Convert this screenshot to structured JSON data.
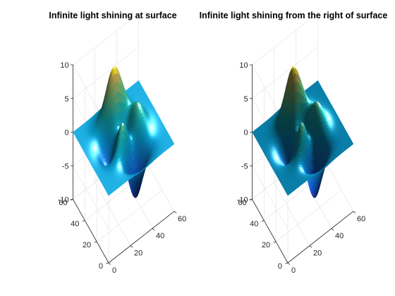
{
  "chart_data": [
    {
      "type": "surface",
      "title": "Infinite light shining at surface",
      "xlabel": "",
      "ylabel": "",
      "zlabel": "",
      "xlim": [
        0,
        60
      ],
      "ylim": [
        0,
        60
      ],
      "zlim": [
        -10,
        10
      ],
      "x_ticks": [
        "0",
        "20",
        "40",
        "60"
      ],
      "y_ticks": [
        "0",
        "20",
        "40",
        "60"
      ],
      "z_ticks": [
        "-10",
        "-5",
        "0",
        "5",
        "10"
      ],
      "grid": "on",
      "colormap": "parula",
      "light": "infinite, at surface",
      "function": "peaks",
      "grid_size": 49,
      "z_range": [
        -6.5,
        8.1
      ]
    },
    {
      "type": "surface",
      "title": "Infinite light shining from the right of surface",
      "xlabel": "",
      "ylabel": "",
      "zlabel": "",
      "xlim": [
        0,
        60
      ],
      "ylim": [
        0,
        60
      ],
      "zlim": [
        -10,
        10
      ],
      "x_ticks": [
        "0",
        "20",
        "40",
        "60"
      ],
      "y_ticks": [
        "0",
        "20",
        "40",
        "60"
      ],
      "z_ticks": [
        "-10",
        "-5",
        "0",
        "5",
        "10"
      ],
      "grid": "on",
      "colormap": "parula",
      "light": "infinite, from the right",
      "function": "peaks",
      "grid_size": 49,
      "z_range": [
        -6.5,
        8.1
      ]
    }
  ],
  "colors": {
    "background": "#ffffff",
    "axis": "#262626",
    "grid": "#e2e2e2",
    "colormap_low": "#352a87",
    "colormap_mid": "#18b5b5",
    "colormap_high": "#f9fb0e"
  }
}
